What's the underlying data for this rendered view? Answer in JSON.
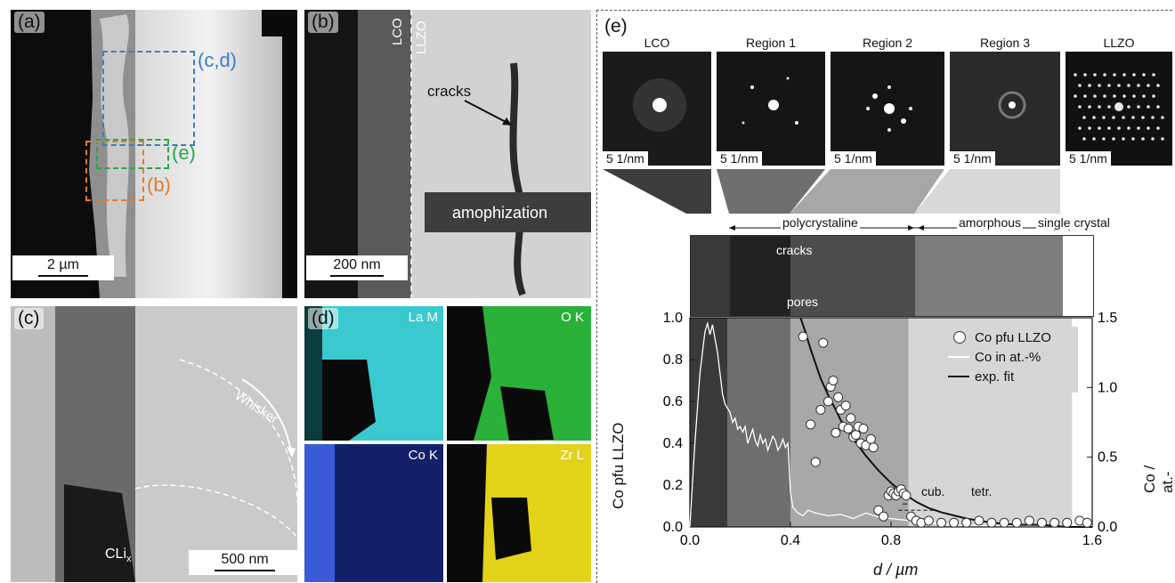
{
  "panel_a": {
    "label": "(a)",
    "box_cd": "(c,d)",
    "box_e": "(e)",
    "box_b": "(b)",
    "scale": "2 µm"
  },
  "panel_b": {
    "label": "(b)",
    "lco": "LCO",
    "llzo": "LLZO",
    "cracks": "cracks",
    "amorph": "amophization",
    "scale": "200 nm"
  },
  "panel_c": {
    "label": "(c)",
    "whisker": "Whisker",
    "cli": "CLi",
    "cli_sub": "x",
    "scale": "500 nm"
  },
  "panel_d": {
    "label": "(d)",
    "maps": [
      "La M",
      "O K",
      "Co K",
      "Zr L"
    ]
  },
  "panel_e": {
    "label": "(e)",
    "diffraction_titles": [
      "LCO",
      "Region 1",
      "Region 2",
      "Region 3",
      "LLZO"
    ],
    "diffraction_scale": "5 1/nm",
    "zones": [
      "polycrystaline",
      "amorphous",
      "single crystal"
    ],
    "strip_labels": [
      "cracks",
      "pores"
    ],
    "annotation": "cub.",
    "annotation2": "tetr."
  },
  "colors": {
    "blue_box": "#3a7fc1",
    "green_box": "#2aa84a",
    "orange_box": "#e27a2f",
    "la": "#37c6cc",
    "o": "#2bb03a",
    "co": "#2f44c9",
    "zr": "#e3d21a"
  },
  "chart_data": {
    "type": "scatter",
    "xlabel": "d / µm",
    "ylabel": "Co pfu LLZO",
    "y2label": "Co / at.-%",
    "xlim": [
      0.0,
      1.6
    ],
    "ylim": [
      0.0,
      1.0
    ],
    "y2lim": [
      0.0,
      1.5
    ],
    "xticks": [
      "0.0",
      "0.4",
      "0.8",
      "1.6"
    ],
    "yticks": [
      "0.0",
      "0.2",
      "0.4",
      "0.6",
      "0.8",
      "1.0"
    ],
    "y2ticks": [
      "0.0",
      "0.5",
      "1.0",
      "1.5"
    ],
    "regions": [
      {
        "from": 0.0,
        "to": 0.15,
        "shade": "#3a3a3a"
      },
      {
        "from": 0.15,
        "to": 0.4,
        "shade": "#6e6e6e"
      },
      {
        "from": 0.4,
        "to": 0.87,
        "shade": "#a8a8a8"
      },
      {
        "from": 0.87,
        "to": 1.52,
        "shade": "#d6d6d6"
      },
      {
        "from": 1.52,
        "to": 1.6,
        "shade": "#ffffff"
      }
    ],
    "series": [
      {
        "name": "Co pfu LLZO",
        "kind": "points",
        "x": [
          0.45,
          0.48,
          0.5,
          0.52,
          0.53,
          0.55,
          0.56,
          0.57,
          0.58,
          0.59,
          0.6,
          0.61,
          0.62,
          0.63,
          0.64,
          0.65,
          0.66,
          0.67,
          0.68,
          0.69,
          0.7,
          0.72,
          0.73,
          0.75,
          0.77,
          0.79,
          0.8,
          0.81,
          0.82,
          0.83,
          0.84,
          0.85,
          0.86,
          0.88,
          0.9,
          0.92,
          0.95,
          1.0,
          1.05,
          1.1,
          1.15,
          1.2,
          1.25,
          1.3,
          1.35,
          1.4,
          1.45,
          1.5,
          1.55,
          1.58
        ],
        "y": [
          0.91,
          0.49,
          0.31,
          0.56,
          0.88,
          0.6,
          0.67,
          0.7,
          0.45,
          0.62,
          0.56,
          0.48,
          0.58,
          0.47,
          0.52,
          0.43,
          0.44,
          0.48,
          0.4,
          0.47,
          0.39,
          0.42,
          0.38,
          0.08,
          0.05,
          0.15,
          0.17,
          0.16,
          0.15,
          0.17,
          0.18,
          0.16,
          0.15,
          0.05,
          0.03,
          0.02,
          0.03,
          0.02,
          0.02,
          0.02,
          0.03,
          0.02,
          0.02,
          0.02,
          0.03,
          0.02,
          0.02,
          0.02,
          0.03,
          0.02
        ]
      },
      {
        "name": "Co in at.-%",
        "kind": "line",
        "axis": "right",
        "x": [
          0.0,
          0.02,
          0.04,
          0.06,
          0.07,
          0.08,
          0.09,
          0.1,
          0.11,
          0.12,
          0.13,
          0.14,
          0.15,
          0.16,
          0.17,
          0.18,
          0.19,
          0.2,
          0.21,
          0.22,
          0.23,
          0.24,
          0.25,
          0.26,
          0.27,
          0.28,
          0.29,
          0.3,
          0.31,
          0.32,
          0.33,
          0.34,
          0.35,
          0.36,
          0.37,
          0.38,
          0.39,
          0.4,
          0.41,
          0.42,
          0.43,
          0.45,
          0.47,
          0.5,
          0.55,
          0.6,
          0.65,
          0.7,
          0.75,
          0.8,
          0.85,
          0.9,
          1.0,
          1.1,
          1.2,
          1.3,
          1.4,
          1.5,
          1.6
        ],
        "y": [
          0.0,
          0.6,
          1.1,
          1.4,
          1.46,
          1.38,
          1.45,
          1.35,
          1.25,
          1.1,
          0.95,
          0.88,
          0.85,
          0.82,
          0.75,
          0.78,
          0.7,
          0.72,
          0.68,
          0.72,
          0.6,
          0.65,
          0.7,
          0.62,
          0.58,
          0.66,
          0.6,
          0.63,
          0.55,
          0.6,
          0.65,
          0.62,
          0.55,
          0.58,
          0.63,
          0.57,
          0.6,
          0.25,
          0.14,
          0.12,
          0.1,
          0.08,
          0.12,
          0.1,
          0.08,
          0.09,
          0.06,
          0.1,
          0.07,
          0.06,
          0.05,
          0.04,
          0.02,
          0.01,
          0.01,
          0.01,
          0.01,
          0.01,
          0.01
        ]
      },
      {
        "name": "exp. fit",
        "kind": "fit",
        "x": [
          0.44,
          0.46,
          0.48,
          0.5,
          0.52,
          0.55,
          0.58,
          0.6,
          0.65,
          0.7,
          0.75,
          0.8,
          0.85,
          0.9,
          0.95,
          1.0,
          1.1,
          1.2,
          1.3,
          1.4,
          1.5,
          1.6
        ],
        "y": [
          1.0,
          0.93,
          0.85,
          0.78,
          0.71,
          0.63,
          0.56,
          0.51,
          0.42,
          0.34,
          0.27,
          0.21,
          0.16,
          0.12,
          0.09,
          0.07,
          0.04,
          0.02,
          0.01,
          0.01,
          0.0,
          0.0
        ]
      }
    ],
    "legend_position": "top-right",
    "annotation_arrow": {
      "x_from": 0.83,
      "x_to": 0.97,
      "y": 0.08
    }
  }
}
